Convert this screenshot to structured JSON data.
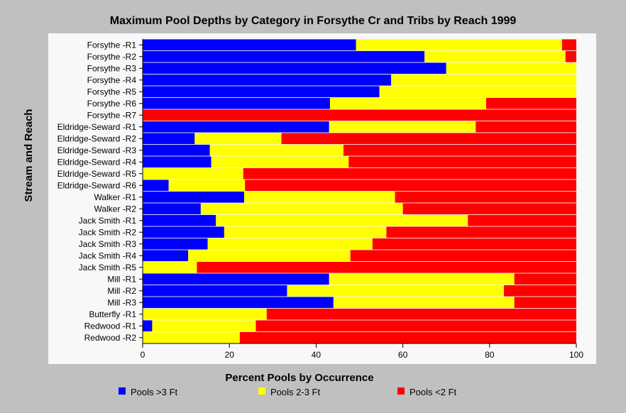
{
  "chart_data": {
    "type": "bar",
    "orientation": "horizontal",
    "stacked": true,
    "title": "Maximum Pool Depths by Category in Forsythe Cr and Tribs by Reach 1999",
    "xlabel": "Percent Pools by Occurrence",
    "ylabel": "Stream and Reach",
    "xlim": [
      0,
      100
    ],
    "xticks": [
      "0",
      "20",
      "40",
      "60",
      "80",
      "100"
    ],
    "legend_position": "bottom",
    "grid": false,
    "categories": [
      "Forsythe -R1",
      "Forsythe -R2",
      "Forsythe -R3",
      "Forsythe -R4",
      "Forsythe -R5",
      "Forsythe -R6",
      "Forsythe -R7",
      "Eldridge-Seward -R1",
      "Eldridge-Seward -R2",
      "Eldridge-Seward -R3",
      "Eldridge-Seward -R4",
      "Eldridge-Seward -R5",
      "Eldridge-Seward -R6",
      "Walker -R1",
      "Walker -R2",
      "Jack Smith -R1",
      "Jack Smith -R2",
      "Jack Smith -R3",
      "Jack Smith -R4",
      "Jack Smith -R5",
      "Mill -R1",
      "Mill -R2",
      "Mill -R3",
      "Butterfly -R1",
      "Redwood -R1",
      "Redwood -R2"
    ],
    "series": [
      {
        "name": "Pools >3 Ft",
        "color": "#0000ff",
        "values": [
          49.2,
          65.0,
          70.0,
          57.3,
          54.6,
          43.2,
          0,
          43.0,
          12.0,
          15.5,
          15.8,
          0,
          6.0,
          23.4,
          13.4,
          16.9,
          18.8,
          15.0,
          10.5,
          0,
          43.0,
          33.3,
          44.0,
          0,
          2.2,
          0
        ]
      },
      {
        "name": "Pools 2-3 Ft",
        "color": "#ffff00",
        "values": [
          47.5,
          32.5,
          30.0,
          42.7,
          45.4,
          36.0,
          0,
          33.8,
          20.0,
          30.8,
          31.7,
          23.2,
          17.6,
          34.8,
          46.6,
          58.1,
          37.4,
          38.0,
          37.4,
          12.5,
          42.7,
          50.0,
          41.7,
          28.6,
          23.9,
          22.4
        ]
      },
      {
        "name": "Pools <2 Ft",
        "color": "#ff0000",
        "values": [
          3.3,
          2.5,
          0,
          0,
          0,
          20.8,
          100,
          23.2,
          68.0,
          53.7,
          52.5,
          76.8,
          76.4,
          41.8,
          40.0,
          25.0,
          43.8,
          47.0,
          52.1,
          87.5,
          14.3,
          16.7,
          14.3,
          71.4,
          73.9,
          77.6
        ]
      }
    ]
  }
}
